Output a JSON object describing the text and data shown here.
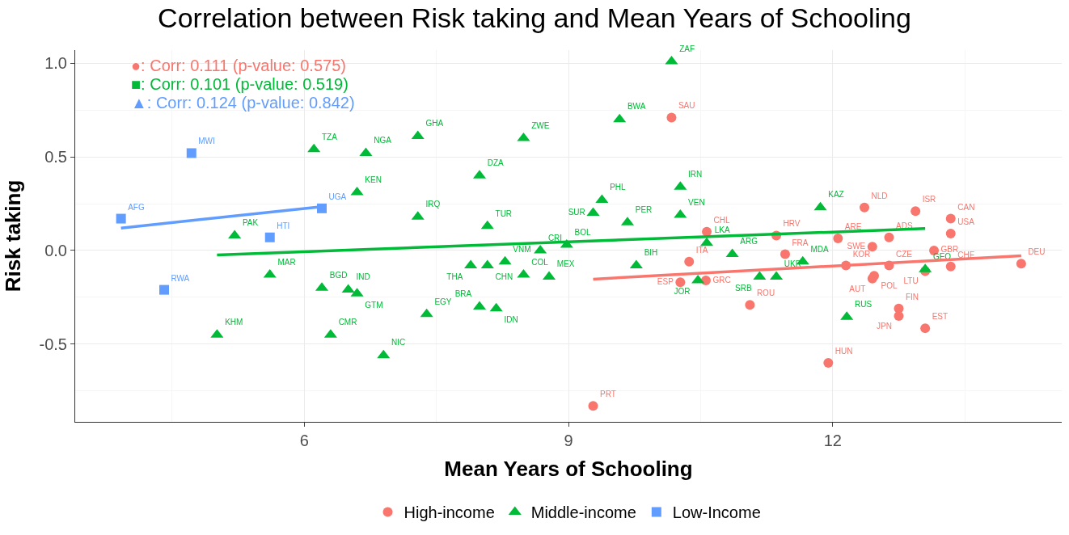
{
  "chart_data": {
    "type": "scatter",
    "title": "Correlation between Risk taking and Mean Years of Schooling",
    "xlabel": "Mean Years of Schooling",
    "ylabel": "Risk taking",
    "xlim": [
      3.4,
      14.6
    ],
    "ylim": [
      -0.915,
      1.07
    ],
    "xticks": [
      6,
      9,
      12
    ],
    "yticks": [
      {
        "value": -0.5,
        "label": "-0.5"
      },
      {
        "value": 0,
        "label": "0.0"
      },
      {
        "value": 0.5,
        "label": "0.5"
      },
      {
        "value": 1,
        "label": "1.0"
      }
    ],
    "grid": true,
    "legend": "bottom",
    "annotations": [
      "●: Corr: 0.111 (p-value: 0.575)",
      "■: Corr: 0.101 (p-value: 0.519)",
      "▲: Corr: 0.124 (p-value: 0.842)"
    ],
    "series": [
      {
        "name": "High-income",
        "color": "#f8766d",
        "marker": "circle",
        "x": [
          10.17,
          12.36,
          12.94,
          13.34,
          13.34,
          10.57,
          11.36,
          12.06,
          12.64,
          12.45,
          11.46,
          13.15,
          12.15,
          12.64,
          14.14,
          13.34,
          13.05,
          10.37,
          12.47,
          12.45,
          10.27,
          10.56,
          11.06,
          12.75,
          12.75,
          13.05,
          11.95,
          9.28
        ],
        "values": [
          0.71,
          0.23,
          0.21,
          0.17,
          0.09,
          0.1,
          0.08,
          0.065,
          0.07,
          0.02,
          -0.02,
          0.0,
          -0.08,
          -0.08,
          -0.07,
          -0.085,
          -0.11,
          -0.06,
          -0.135,
          -0.15,
          -0.17,
          -0.16,
          -0.29,
          -0.31,
          -0.35,
          -0.415,
          -0.6,
          -0.83
        ],
        "value_labels": [
          "SAU",
          "NLD",
          "ISR",
          "CAN",
          "USA",
          "CHL",
          "HRV",
          "ARE",
          "ADS",
          "SWE",
          "FRA",
          "GBR",
          "KOR",
          "CZE",
          "DEU",
          "CHE",
          "LTU",
          "ITA",
          "POL",
          "AUT",
          "ESP",
          "GRC",
          "ROU",
          "FIN",
          "JPN",
          "EST",
          "HUN",
          "PRT"
        ]
      },
      {
        "name": "Middle-income",
        "color": "#00ba38",
        "marker": "triangle",
        "x": [
          10.17,
          9.58,
          7.29,
          8.49,
          6.11,
          6.7,
          7.99,
          10.27,
          6.6,
          9.38,
          11.86,
          9.28,
          10.27,
          7.29,
          9.67,
          8.08,
          5.21,
          8.98,
          10.57,
          8.68,
          10.86,
          8.28,
          11.66,
          7.89,
          8.08,
          9.77,
          5.61,
          8.49,
          11.36,
          11.17,
          8.78,
          13.05,
          10.47,
          6.2,
          6.5,
          6.6,
          7.99,
          8.18,
          7.39,
          12.16,
          5.01,
          6.3,
          6.9
        ],
        "values": [
          1.01,
          0.7,
          0.61,
          0.6,
          0.54,
          0.52,
          0.4,
          0.34,
          0.31,
          0.27,
          0.23,
          0.2,
          0.19,
          0.18,
          0.15,
          0.13,
          0.08,
          0.03,
          0.04,
          0.0,
          -0.02,
          -0.06,
          -0.06,
          -0.08,
          -0.08,
          -0.08,
          -0.13,
          -0.13,
          -0.14,
          -0.14,
          -0.14,
          -0.1,
          -0.16,
          -0.2,
          -0.21,
          -0.23,
          -0.3,
          -0.31,
          -0.34,
          -0.355,
          -0.45,
          -0.45,
          -0.56
        ],
        "value_labels": [
          "ZAF",
          "BWA",
          "GHA",
          "ZWE",
          "TZA",
          "NGA",
          "DZA",
          "IRN",
          "KEN",
          "PHL",
          "KAZ",
          "SUR",
          "VEN",
          "IRQ",
          "PER",
          "TUR",
          "PAK",
          "BOL",
          "LKA",
          "CRI",
          "ARG",
          "VNM",
          "MDA",
          "THA",
          "CHN",
          "BIH",
          "MAR",
          "COL",
          "UKR",
          "SRB",
          "MEX",
          "GEO",
          "JOR",
          "BGD",
          "IND",
          "GTM",
          "BRA",
          "IDN",
          "EGY",
          "RUS",
          "KHM",
          "CMR",
          "NIC"
        ]
      },
      {
        "name": "Low-Income",
        "color": "#619cff",
        "marker": "square",
        "x": [
          3.92,
          4.72,
          5.61,
          6.2,
          4.41
        ],
        "values": [
          0.17,
          0.52,
          0.07,
          0.225,
          -0.21
        ],
        "value_labels": [
          "AFG",
          "MWI",
          "HTI",
          "UGA",
          "RWA"
        ]
      },
      {
        "type": "line",
        "color": "#f8766d",
        "x": [
          9.28,
          14.14
        ],
        "values": [
          -0.153,
          -0.028
        ]
      },
      {
        "type": "line",
        "color": "#00ba38",
        "x": [
          5.01,
          13.05
        ],
        "values": [
          -0.024,
          0.117
        ]
      },
      {
        "type": "line",
        "color": "#619cff",
        "x": [
          3.92,
          6.2
        ],
        "values": [
          0.12,
          0.234
        ]
      }
    ]
  }
}
